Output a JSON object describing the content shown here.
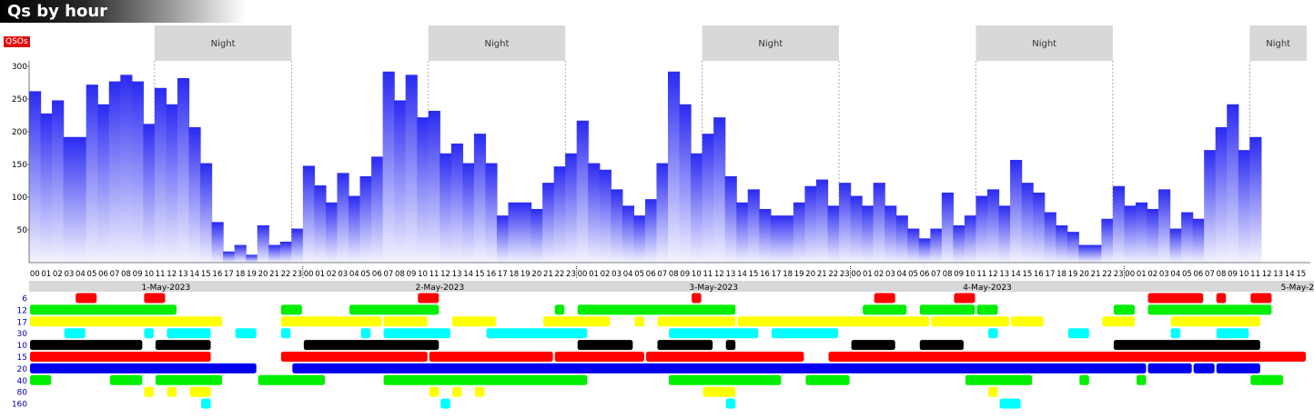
{
  "header": {
    "title": "Qs by hour",
    "badge": "QSOs"
  },
  "colors": {
    "bar_top": "#2a2af2",
    "bar_bottom": "#f4f4ff",
    "night_band": "#d8d8d8",
    "date_band": "#d8d8d8",
    "band_colors": {
      "6": "#ff0000",
      "12": "#00ee00",
      "17": "#ffff00",
      "30": "#00ffff",
      "10": "#000000",
      "15": "#ff0000",
      "20": "#0000ee",
      "40": "#00ee00",
      "80": "#ffff00",
      "160": "#00ffff"
    }
  },
  "chart_data": {
    "type": "bar",
    "hours": 112,
    "values": [
      262,
      228,
      248,
      192,
      192,
      272,
      242,
      277,
      287,
      277,
      212,
      267,
      242,
      282,
      207,
      152,
      62,
      17,
      27,
      12,
      57,
      27,
      32,
      52,
      148,
      118,
      92,
      137,
      102,
      132,
      162,
      292,
      248,
      287,
      222,
      232,
      167,
      182,
      152,
      197,
      152,
      72,
      92,
      92,
      82,
      122,
      147,
      167,
      217,
      152,
      142,
      112,
      87,
      72,
      97,
      152,
      292,
      242,
      167,
      197,
      222,
      132,
      92,
      112,
      82,
      72,
      72,
      92,
      117,
      127,
      87,
      122,
      102,
      87,
      122,
      87,
      72,
      52,
      37,
      52,
      107,
      57,
      72,
      102,
      112,
      87,
      157,
      122,
      107,
      77,
      57,
      47,
      27,
      27,
      67,
      117,
      87,
      92,
      82,
      112,
      52,
      77,
      67,
      172,
      207,
      242,
      172,
      192
    ],
    "y_ticks": [
      50,
      100,
      150,
      200,
      250,
      300
    ],
    "ylim": [
      0,
      300
    ],
    "hour_labels": [
      "00",
      "01",
      "02",
      "03",
      "04",
      "05",
      "06",
      "07",
      "08",
      "09",
      "10",
      "11",
      "12",
      "13",
      "14",
      "15",
      "16",
      "17",
      "18",
      "19",
      "20",
      "21",
      "22",
      "23"
    ],
    "day_labels": [
      "1-May-2023",
      "2-May-2023",
      "3-May-2023",
      "4-May-2023",
      "5-May-2"
    ],
    "night_label": "Night",
    "night_periods": [
      [
        11,
        23
      ],
      [
        35,
        47
      ],
      [
        59,
        71
      ],
      [
        83,
        95
      ],
      [
        107,
        112
      ]
    ],
    "band_labels": [
      "6",
      "12",
      "17",
      "30",
      "10",
      "15",
      "20",
      "40",
      "80",
      "160"
    ],
    "band_activity": {
      "6": [
        [
          4,
          5
        ],
        [
          10,
          11
        ],
        [
          34,
          35
        ],
        [
          58,
          58
        ],
        [
          74,
          75
        ],
        [
          81,
          82
        ],
        [
          98,
          102
        ],
        [
          104,
          104
        ],
        [
          107,
          108
        ]
      ],
      "12": [
        [
          0,
          12
        ],
        [
          22,
          23
        ],
        [
          28,
          35
        ],
        [
          46,
          46
        ],
        [
          48,
          61
        ],
        [
          73,
          76
        ],
        [
          78,
          82
        ],
        [
          83,
          84
        ],
        [
          95,
          96
        ],
        [
          98,
          108
        ]
      ],
      "17": [
        [
          0,
          16
        ],
        [
          22,
          30
        ],
        [
          31,
          34
        ],
        [
          37,
          40
        ],
        [
          45,
          50
        ],
        [
          53,
          53
        ],
        [
          55,
          61
        ],
        [
          62,
          78
        ],
        [
          79,
          85
        ],
        [
          86,
          88
        ],
        [
          94,
          96
        ],
        [
          100,
          107
        ]
      ],
      "30": [
        [
          3,
          4
        ],
        [
          10,
          10
        ],
        [
          12,
          15
        ],
        [
          18,
          19
        ],
        [
          22,
          22
        ],
        [
          29,
          29
        ],
        [
          31,
          36
        ],
        [
          40,
          48
        ],
        [
          56,
          63
        ],
        [
          65,
          70
        ],
        [
          84,
          84
        ],
        [
          91,
          92
        ],
        [
          100,
          100
        ],
        [
          104,
          106
        ]
      ],
      "10": [
        [
          0,
          9
        ],
        [
          11,
          15
        ],
        [
          24,
          35
        ],
        [
          48,
          52
        ],
        [
          55,
          59
        ],
        [
          61,
          61
        ],
        [
          72,
          75
        ],
        [
          78,
          81
        ],
        [
          95,
          107
        ]
      ],
      "15": [
        [
          0,
          15
        ],
        [
          22,
          34
        ],
        [
          35,
          45
        ],
        [
          46,
          53
        ],
        [
          54,
          67
        ],
        [
          70,
          112
        ]
      ],
      "20": [
        [
          0,
          19
        ],
        [
          23,
          97
        ],
        [
          98,
          101
        ],
        [
          102,
          103
        ],
        [
          104,
          107
        ]
      ],
      "40": [
        [
          0,
          1
        ],
        [
          7,
          9
        ],
        [
          11,
          16
        ],
        [
          20,
          25
        ],
        [
          31,
          48
        ],
        [
          56,
          65
        ],
        [
          68,
          71
        ],
        [
          82,
          87
        ],
        [
          92,
          92
        ],
        [
          97,
          97
        ],
        [
          107,
          109
        ]
      ],
      "80": [
        [
          10,
          10
        ],
        [
          12,
          12
        ],
        [
          14,
          15
        ],
        [
          35,
          35
        ],
        [
          37,
          37
        ],
        [
          39,
          39
        ],
        [
          59,
          61
        ],
        [
          84,
          84
        ]
      ],
      "160": [
        [
          15,
          15
        ],
        [
          36,
          36
        ],
        [
          61,
          61
        ],
        [
          85,
          86
        ]
      ]
    }
  }
}
